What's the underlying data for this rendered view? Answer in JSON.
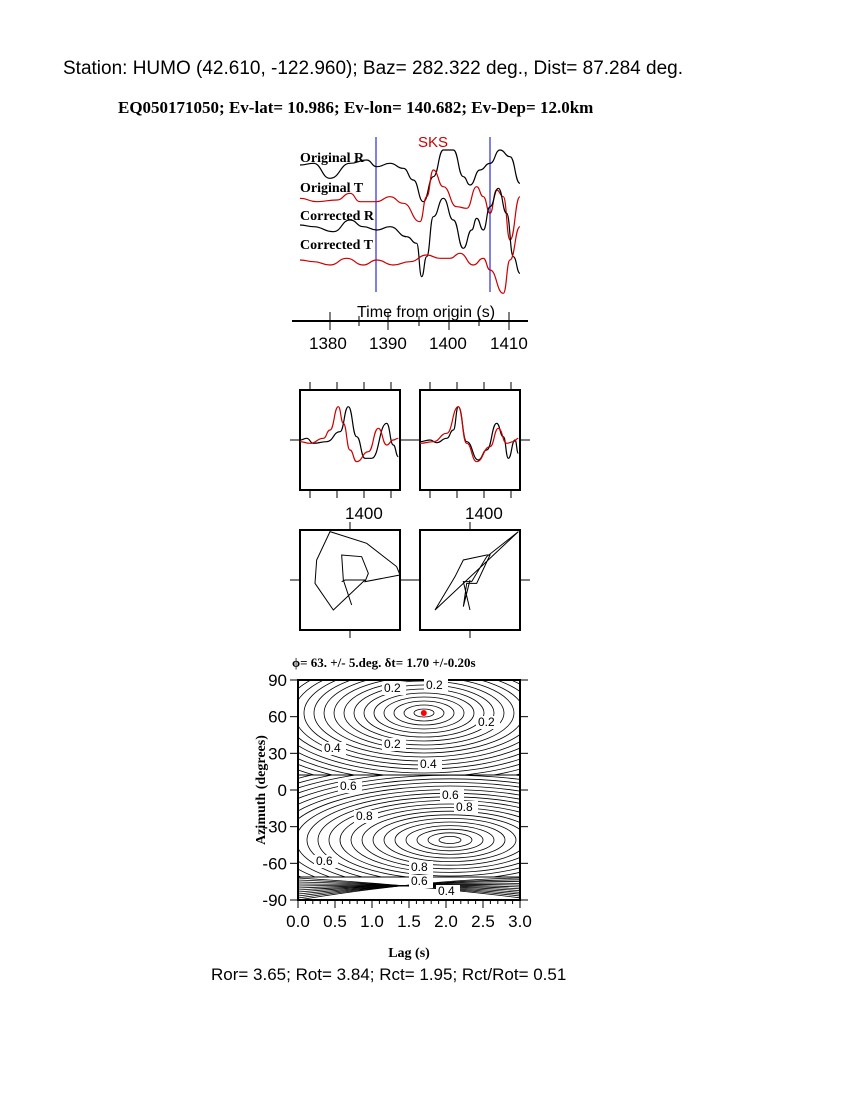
{
  "header": {
    "station_line": "Station: HUMO (42.610, -122.960); Baz=  282.322 deg., Dist=   87.284 deg.",
    "event_line": "EQ050171050; Ev-lat=  10.986; Ev-lon= 140.682; Ev-Dep= 12.0km"
  },
  "footer": "Ror= 3.65; Rot= 3.84; Rct= 1.95; Rct/Rot= 0.51",
  "colors": {
    "trace_r": "#000000",
    "trace_t": "#cc0000",
    "window": "#0000cc",
    "best_fit": "#ff0000"
  },
  "chart_data": [
    {
      "type": "line",
      "panel": "seismograms",
      "phase_label": "SKS",
      "trace_labels": [
        "Original R",
        "Original T",
        "Corrected R",
        "Corrected T"
      ],
      "xlabel": "Time from origin (s)",
      "x_ticks": [
        "1380",
        "1390",
        "1400",
        "1410"
      ],
      "xlim": [
        1374,
        1413
      ],
      "window": [
        1388,
        1407
      ]
    },
    {
      "type": "line",
      "panel": "windowed-waveforms",
      "x_tick_label": "1400",
      "panels": [
        "original",
        "corrected"
      ]
    },
    {
      "type": "line",
      "panel": "particle-motion",
      "panels": [
        "original",
        "corrected"
      ]
    },
    {
      "type": "heatmap",
      "panel": "energy-contour",
      "title": "ϕ= 63. +/- 5.deg. δt= 1.70 +/-0.20s",
      "xlabel": "Lag (s)",
      "ylabel": "Azimuth (degrees)",
      "xlim": [
        0,
        3
      ],
      "ylim": [
        -90,
        90
      ],
      "x_ticks": [
        "0.0",
        "0.5",
        "1.0",
        "1.5",
        "2.0",
        "2.5",
        "3.0"
      ],
      "y_ticks": [
        "90",
        "60",
        "30",
        "0",
        "-30",
        "-60",
        "-90"
      ],
      "best_fit": {
        "lag": 1.7,
        "azimuth": 63
      },
      "contour_labels": [
        "0.2",
        "0.2",
        "0.2",
        "0.2",
        "0.4",
        "0.4",
        "0.6",
        "0.6",
        "0.8",
        "0.8",
        "0.6",
        "0.8",
        "0.6",
        "0.4"
      ]
    }
  ]
}
